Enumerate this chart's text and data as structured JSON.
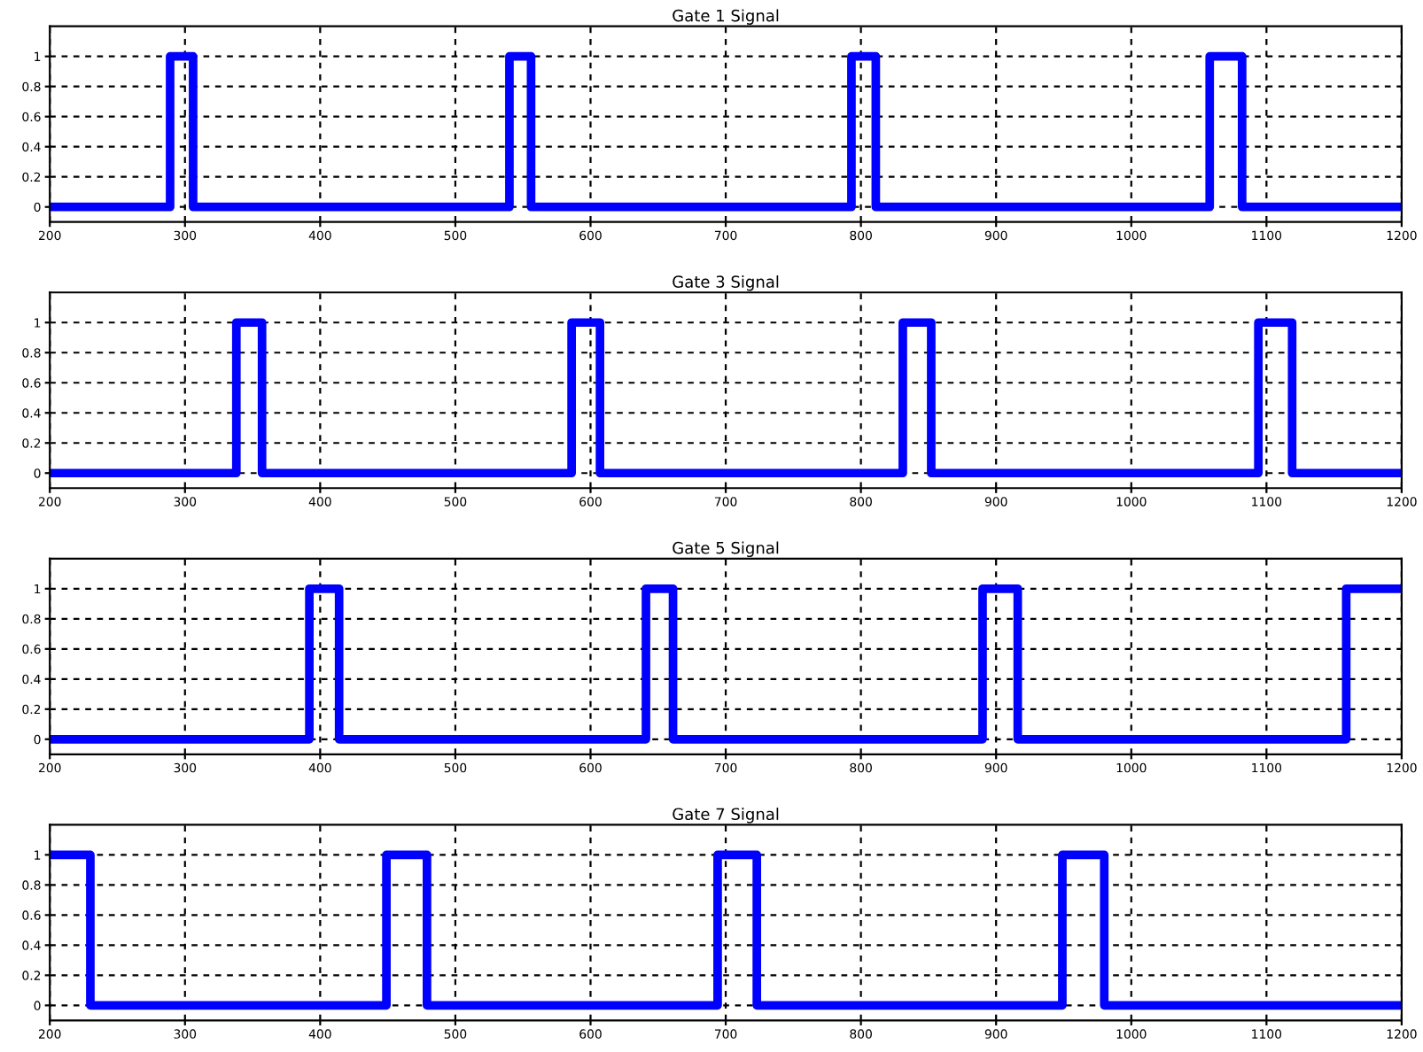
{
  "chart_data": [
    {
      "type": "line",
      "title": "Gate 1 Signal",
      "xlim": [
        200,
        1200
      ],
      "ylim": [
        -0.1,
        1.2
      ],
      "xticks": [
        200,
        300,
        400,
        500,
        600,
        700,
        800,
        900,
        1000,
        1100,
        1200
      ],
      "yticks": [
        0,
        0.2,
        0.4,
        0.6,
        0.8,
        1
      ],
      "grid": true,
      "line_style": "solid",
      "marker": "none",
      "series": [
        {
          "color": "#0000ff",
          "x": [
            200,
            289,
            289,
            306,
            306,
            540,
            540,
            556,
            556,
            793,
            793,
            811,
            811,
            1058,
            1058,
            1082,
            1082,
            1200
          ],
          "values": [
            0,
            0,
            1,
            1,
            0,
            0,
            1,
            1,
            0,
            0,
            1,
            1,
            0,
            0,
            1,
            1,
            0,
            0
          ]
        }
      ]
    },
    {
      "type": "line",
      "title": "Gate 3 Signal",
      "xlim": [
        200,
        1200
      ],
      "ylim": [
        -0.1,
        1.2
      ],
      "xticks": [
        200,
        300,
        400,
        500,
        600,
        700,
        800,
        900,
        1000,
        1100,
        1200
      ],
      "yticks": [
        0,
        0.2,
        0.4,
        0.6,
        0.8,
        1
      ],
      "grid": true,
      "line_style": "solid",
      "marker": "none",
      "series": [
        {
          "color": "#0000ff",
          "x": [
            200,
            338,
            338,
            357,
            357,
            586,
            586,
            607,
            607,
            831,
            831,
            852,
            852,
            1094,
            1094,
            1119,
            1119,
            1200
          ],
          "values": [
            0,
            0,
            1,
            1,
            0,
            0,
            1,
            1,
            0,
            0,
            1,
            1,
            0,
            0,
            1,
            1,
            0,
            0
          ]
        }
      ]
    },
    {
      "type": "line",
      "title": "Gate 5 Signal",
      "xlim": [
        200,
        1200
      ],
      "ylim": [
        -0.1,
        1.2
      ],
      "xticks": [
        200,
        300,
        400,
        500,
        600,
        700,
        800,
        900,
        1000,
        1100,
        1200
      ],
      "yticks": [
        0,
        0.2,
        0.4,
        0.6,
        0.8,
        1
      ],
      "grid": true,
      "line_style": "solid",
      "marker": "none",
      "series": [
        {
          "color": "#0000ff",
          "x": [
            200,
            392,
            392,
            414,
            414,
            641,
            641,
            661,
            661,
            890,
            890,
            916,
            916,
            1159,
            1159,
            1200
          ],
          "values": [
            0,
            0,
            1,
            1,
            0,
            0,
            1,
            1,
            0,
            0,
            1,
            1,
            0,
            0,
            1,
            1
          ]
        }
      ]
    },
    {
      "type": "line",
      "title": "Gate 7 Signal",
      "xlim": [
        200,
        1200
      ],
      "ylim": [
        -0.1,
        1.2
      ],
      "xticks": [
        200,
        300,
        400,
        500,
        600,
        700,
        800,
        900,
        1000,
        1100,
        1200
      ],
      "yticks": [
        0,
        0.2,
        0.4,
        0.6,
        0.8,
        1
      ],
      "grid": true,
      "line_style": "solid",
      "marker": "none",
      "series": [
        {
          "color": "#0000ff",
          "x": [
            200,
            230,
            230,
            449,
            449,
            479,
            479,
            694,
            694,
            723,
            723,
            949,
            949,
            980,
            980,
            1200
          ],
          "values": [
            1,
            1,
            0,
            0,
            1,
            1,
            0,
            0,
            1,
            1,
            0,
            0,
            1,
            1,
            0,
            0
          ]
        }
      ]
    }
  ]
}
